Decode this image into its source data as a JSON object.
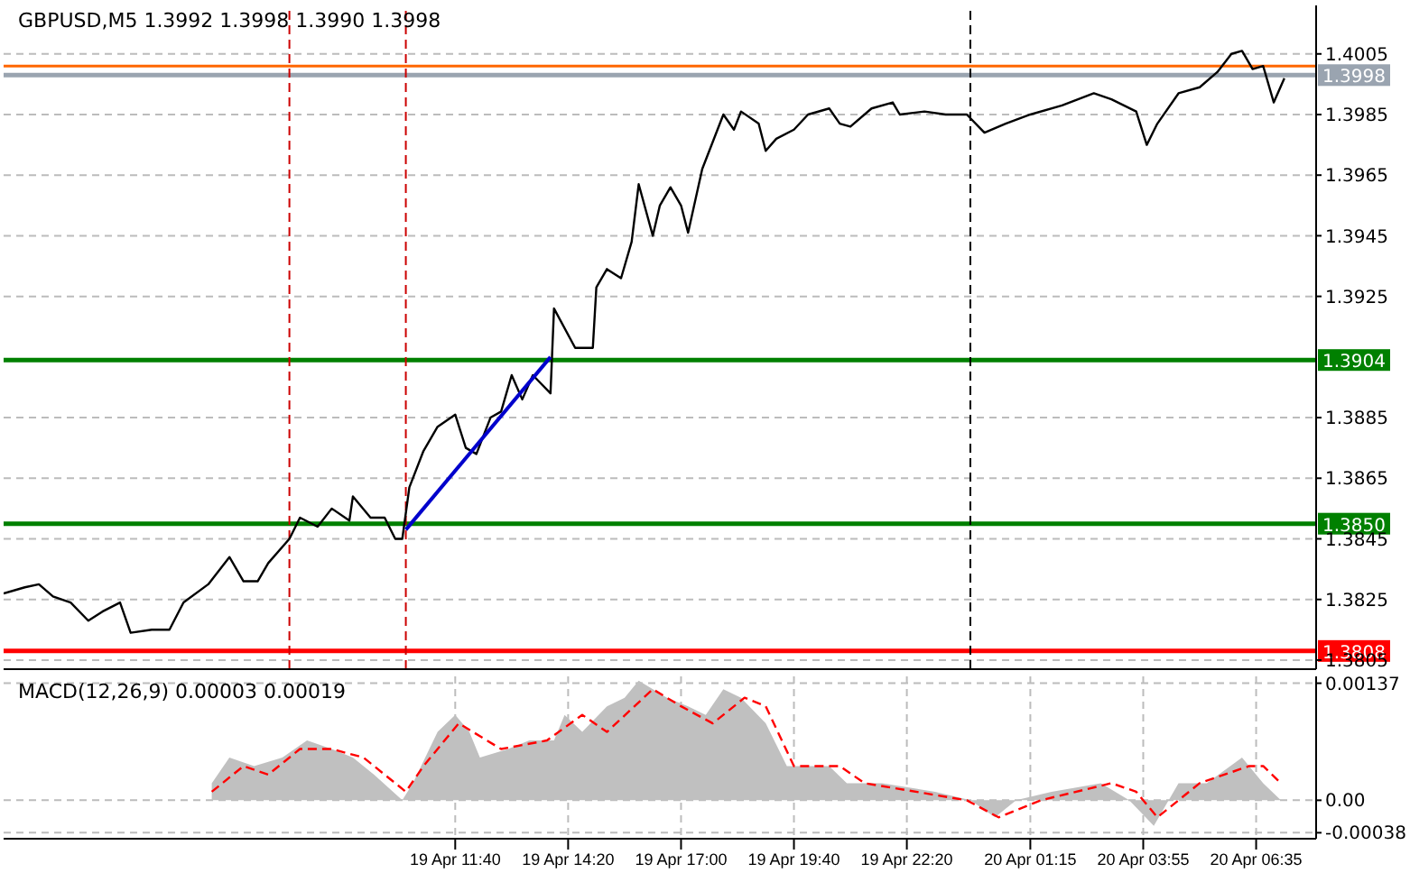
{
  "chart_data": [
    {
      "type": "line",
      "title": "GBPUSD,M5  1.3992 1.3998 1.3990 1.3998",
      "xlim": [
        "--04-19T01:00",
        "--04-20T08:00"
      ],
      "xticks": [
        {
          "value": "--04-19T11:40",
          "label": null
        },
        {
          "value": "--04-19T14:20",
          "label": null
        },
        {
          "value": "--04-19T17:00",
          "label": null
        },
        {
          "value": "--04-19T19:40",
          "label": null
        },
        {
          "value": "--04-19T22:20",
          "label": null
        },
        {
          "value": "--04-20T01:15",
          "label": null
        },
        {
          "value": "--04-20T03:55",
          "label": null
        },
        {
          "value": "--04-20T06:35",
          "label": null
        }
      ],
      "ylim": [
        1.3802,
        1.4021
      ],
      "yticks": [
        1.3805,
        1.3825,
        1.3845,
        1.3865,
        1.3885,
        1.3925,
        1.3945,
        1.3965,
        1.3985,
        1.4005
      ],
      "tick_labels": "y",
      "grid": true,
      "series": [
        {
          "color": "#000000",
          "x": [
            "--04-19T01:00",
            "--04-19T01:30",
            "--04-19T01:50",
            "--04-19T02:10",
            "--04-19T02:35",
            "--04-19T03:00",
            "--04-19T03:20",
            "--04-19T03:45",
            "--04-19T04:00",
            "--04-19T04:30",
            "--04-19T04:55",
            "--04-19T05:15",
            "--04-19T05:50",
            "--04-19T06:20",
            "--04-19T06:40",
            "--04-19T07:00",
            "--04-19T07:15",
            "--04-19T07:45",
            "--04-19T08:00",
            "--04-19T08:25",
            "--04-19T08:45",
            "--04-19T09:10",
            "--04-19T09:15",
            "--04-19T09:40",
            "--04-19T10:00",
            "--04-19T10:15",
            "--04-19T10:25",
            "--04-19T10:35",
            "--04-19T10:55",
            "--04-19T11:15",
            "--04-19T11:40",
            "--04-19T11:55",
            "--04-19T12:10",
            "--04-19T12:30",
            "--04-19T12:45",
            "--04-19T13:00",
            "--04-19T13:15",
            "--04-19T13:30",
            "--04-19T13:55",
            "--04-19T14:00",
            "--04-19T14:30",
            "--04-19T14:55",
            "--04-19T15:00",
            "--04-19T15:15",
            "--04-19T15:35",
            "--04-19T15:50",
            "--04-19T16:00",
            "--04-19T16:20",
            "--04-19T16:30",
            "--04-19T16:45",
            "--04-19T17:00",
            "--04-19T17:10",
            "--04-19T17:30",
            "--04-19T17:45",
            "--04-19T18:00",
            "--04-19T18:15",
            "--04-19T18:25",
            "--04-19T18:50",
            "--04-19T19:00",
            "--04-19T19:15",
            "--04-19T19:40",
            "--04-19T20:00",
            "--04-19T20:30",
            "--04-19T20:45",
            "--04-19T21:00",
            "--04-19T21:30",
            "--04-19T22:00",
            "--04-19T22:10",
            "--04-19T22:45",
            "--04-19T23:15",
            "--04-19T23:45",
            "--04-20T00:10",
            "--04-20T00:40",
            "--04-20T01:15",
            "--04-20T02:00",
            "--04-20T02:45",
            "--04-20T03:10",
            "--04-20T03:45",
            "--04-20T04:00",
            "--04-20T04:15",
            "--04-20T04:45",
            "--04-20T05:15",
            "--04-20T05:40",
            "--04-20T06:00",
            "--04-20T06:15",
            "--04-20T06:30",
            "--04-20T06:45",
            "--04-20T07:00",
            "--04-20T07:15"
          ],
          "values": [
            1.3827,
            1.3829,
            1.383,
            1.3826,
            1.3824,
            1.3818,
            1.3821,
            1.3824,
            1.3814,
            1.3815,
            1.3815,
            1.3824,
            1.383,
            1.3839,
            1.3831,
            1.3831,
            1.3837,
            1.3845,
            1.3852,
            1.3849,
            1.3855,
            1.3851,
            1.3859,
            1.3852,
            1.3852,
            1.3845,
            1.3845,
            1.3862,
            1.3874,
            1.3882,
            1.3886,
            1.3875,
            1.3873,
            1.3885,
            1.3887,
            1.3899,
            1.3891,
            1.3899,
            1.3893,
            1.3921,
            1.3908,
            1.3908,
            1.3928,
            1.3934,
            1.3931,
            1.3943,
            1.3962,
            1.3945,
            1.3955,
            1.3961,
            1.3955,
            1.3946,
            1.3967,
            1.3976,
            1.3985,
            1.398,
            1.3986,
            1.3982,
            1.3973,
            1.3977,
            1.398,
            1.3985,
            1.3987,
            1.3982,
            1.3981,
            1.3987,
            1.3989,
            1.3985,
            1.3986,
            1.3985,
            1.3985,
            1.3979,
            1.3982,
            1.3985,
            1.3988,
            1.3992,
            1.399,
            1.3986,
            1.3975,
            1.3982,
            1.3992,
            1.3994,
            1.3999,
            1.4005,
            1.4006,
            1.4,
            1.4001,
            1.3989,
            1.3997
          ]
        },
        {
          "type": "line",
          "color": "#0000cc",
          "x": [
            "--04-19T10:30",
            "--04-19T13:55"
          ],
          "values": [
            1.3848,
            1.3905
          ]
        }
      ],
      "ref_lines": [
        {
          "axis": "y",
          "value": 1.4001,
          "label": null,
          "color": "#ff6600"
        },
        {
          "axis": "y",
          "value": 1.3998,
          "label": "1.3998",
          "color": "#9aa4b0"
        },
        {
          "axis": "y",
          "value": 1.3904,
          "label": "1.3904",
          "color": "#008000"
        },
        {
          "axis": "y",
          "value": 1.385,
          "label": "1.3850",
          "color": "#008000"
        },
        {
          "axis": "y",
          "value": 1.3808,
          "label": "1.3808",
          "color": "#ff0000"
        },
        {
          "axis": "x",
          "value": "--04-19T07:45",
          "label": null,
          "color": "#cc0000",
          "line_style": "dashed"
        },
        {
          "axis": "x",
          "value": "--04-19T10:30",
          "label": null,
          "color": "#cc0000",
          "line_style": "dashed"
        },
        {
          "axis": "x",
          "value": "--04-19T23:50",
          "label": null,
          "color": "#000000",
          "line_style": "dashed"
        }
      ]
    },
    {
      "type": "area",
      "title": "MACD(12,26,9) 0.00003 0.00019",
      "xlim": [
        "--04-19T01:00",
        "--04-20T08:00"
      ],
      "xticks": [
        {
          "value": "--04-19T11:40",
          "label": "19 Apr 11:40"
        },
        {
          "value": "--04-19T14:20",
          "label": "19 Apr 14:20"
        },
        {
          "value": "--04-19T17:00",
          "label": "19 Apr 17:00"
        },
        {
          "value": "--04-19T19:40",
          "label": "19 Apr 19:40"
        },
        {
          "value": "--04-19T22:20",
          "label": "19 Apr 22:20"
        },
        {
          "value": "--04-20T01:15",
          "label": "20 Apr 01:15"
        },
        {
          "value": "--04-20T03:55",
          "label": "20 Apr 03:55"
        },
        {
          "value": "--04-20T06:35",
          "label": "20 Apr 06:35"
        }
      ],
      "ylim": [
        -0.00045,
        0.00145
      ],
      "yticks": [
        -0.00038,
        {
          "value": 0,
          "label": "0.00"
        },
        0.00137
      ],
      "grid": true,
      "series": [
        {
          "color": "#c0c0c0",
          "x": [
            "--04-19T05:55",
            "--04-19T06:20",
            "--04-19T06:55",
            "--04-19T07:35",
            "--04-19T08:10",
            "--04-19T08:45",
            "--04-19T09:15",
            "--04-19T09:45",
            "--04-19T10:25",
            "--04-19T10:40",
            "--04-19T11:15",
            "--04-19T11:40",
            "--04-19T12:00",
            "--04-19T12:15",
            "--04-19T12:55",
            "--04-19T13:25",
            "--04-19T14:00",
            "--04-19T14:15",
            "--04-19T14:40",
            "--04-19T15:15",
            "--04-19T15:40",
            "--04-19T16:00",
            "--04-19T16:40",
            "--04-19T17:10",
            "--04-19T17:35",
            "--04-19T18:00",
            "--04-19T18:25",
            "--04-19T19:00",
            "--04-19T19:30",
            "--04-19T20:30",
            "--04-19T20:55",
            "--04-19T21:45",
            "--04-19T23:00",
            "--04-19T23:50",
            "--04-20T00:25",
            "--04-20T00:55",
            "--04-20T01:45",
            "--04-20T02:55",
            "--04-20T03:35",
            "--04-20T04:10",
            "--04-20T04:45",
            "--04-20T05:25",
            "--04-20T06:15",
            "--04-20T06:45",
            "--04-20T07:10"
          ],
          "values": [
            0.0002,
            0.0005,
            0.0004,
            0.0005,
            0.0007,
            0.0006,
            0.0005,
            0.0003,
            0,
            0.0002,
            0.0008,
            0.001,
            0.0008,
            0.0005,
            0.0006,
            0.0007,
            0.0007,
            0.001,
            0.0008,
            0.0011,
            0.0012,
            0.0014,
            0.0012,
            0.0011,
            0.001,
            0.0013,
            0.0012,
            0.0009,
            0.0004,
            0.0004,
            0.0002,
            0.0002,
            0.0001,
            0,
            -0.0002,
            0,
            0.0001,
            0.0002,
            0,
            -0.0003,
            0.0002,
            0.0002,
            0.0005,
            0.0002,
            0
          ]
        },
        {
          "type": "line",
          "color": "#ff0000",
          "line_style": "dashed",
          "x": [
            "--04-19T05:55",
            "--04-19T06:40",
            "--04-19T07:15",
            "--04-19T08:00",
            "--04-19T08:45",
            "--04-19T09:30",
            "--04-19T10:30",
            "--04-19T10:55",
            "--04-19T11:45",
            "--04-19T12:45",
            "--04-19T13:50",
            "--04-19T14:40",
            "--04-19T15:15",
            "--04-19T16:20",
            "--04-19T17:00",
            "--04-19T17:45",
            "--04-19T18:30",
            "--04-19T19:00",
            "--04-19T19:40",
            "--04-19T20:45",
            "--04-19T21:20",
            "--04-19T23:45",
            "--04-20T00:30",
            "--04-20T01:30",
            "--04-20T03:10",
            "--04-20T03:45",
            "--04-20T04:15",
            "--04-20T05:15",
            "--04-20T06:25",
            "--04-20T06:45",
            "--04-20T07:10"
          ],
          "values": [
            0.0001,
            0.0004,
            0.0003,
            0.0006,
            0.0006,
            0.0005,
            0.0001,
            0.0004,
            0.0009,
            0.0006,
            0.0007,
            0.001,
            0.0008,
            0.0013,
            0.0011,
            0.0009,
            0.0012,
            0.0011,
            0.0004,
            0.0004,
            0.0002,
            0,
            -0.0002,
            0,
            0.0002,
            0.0001,
            -0.0002,
            0.0002,
            0.0004,
            0.0004,
            0.0002
          ]
        }
      ]
    }
  ]
}
